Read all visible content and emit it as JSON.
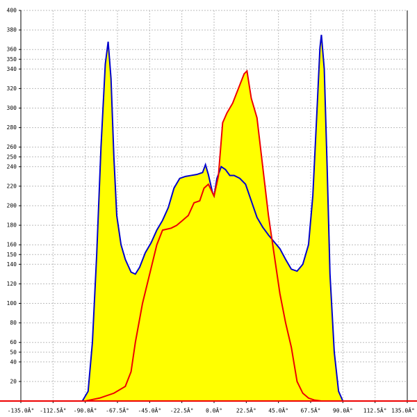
{
  "chart_data": {
    "type": "area",
    "xlim": [
      -135,
      135
    ],
    "ylim": [
      0,
      400
    ],
    "xticks": [
      {
        "value": -135,
        "label": "-135.0Â°"
      },
      {
        "value": -112.5,
        "label": "-112.5Â°"
      },
      {
        "value": -90,
        "label": "-90.0Â°"
      },
      {
        "value": -67.5,
        "label": "-67.5Â°"
      },
      {
        "value": -45,
        "label": "-45.0Â°"
      },
      {
        "value": -22.5,
        "label": "-22.5Â°"
      },
      {
        "value": 0,
        "label": "0.0Â°"
      },
      {
        "value": 22.5,
        "label": "22.5Â°"
      },
      {
        "value": 45,
        "label": "45.0Â°"
      },
      {
        "value": 67.5,
        "label": "67.5Â°"
      },
      {
        "value": 90,
        "label": "90.0Â°"
      },
      {
        "value": 112.5,
        "label": "112.5Â°"
      },
      {
        "value": 135,
        "label": "135.0Â°"
      }
    ],
    "yticks": [
      20,
      40,
      50,
      60,
      80,
      100,
      120,
      140,
      150,
      160,
      180,
      200,
      220,
      240,
      250,
      260,
      280,
      300,
      320,
      340,
      350,
      360,
      380,
      400
    ],
    "grid": true,
    "fill_color": "#ffff00",
    "series": [
      {
        "color": "#0000cc",
        "x": [
          -92,
          -88,
          -85,
          -82,
          -79,
          -76,
          -74,
          -72,
          -70,
          -68,
          -65,
          -62,
          -58,
          -55,
          -52,
          -48,
          -44,
          -40,
          -36,
          -32,
          -28,
          -24,
          -20,
          -16,
          -12,
          -8,
          -6,
          -4,
          -1,
          0,
          2,
          5,
          8,
          11,
          14,
          18,
          22,
          26,
          30,
          34,
          38,
          42,
          46,
          50,
          54,
          58,
          62,
          66,
          69,
          72,
          74,
          75,
          77,
          79,
          81,
          84,
          87,
          90
        ],
        "values": [
          0,
          10,
          60,
          150,
          260,
          345,
          368,
          330,
          250,
          190,
          160,
          145,
          132,
          130,
          137,
          152,
          162,
          175,
          185,
          198,
          218,
          228,
          230,
          231,
          232,
          234,
          242,
          232,
          213,
          210,
          228,
          240,
          237,
          231,
          231,
          228,
          222,
          205,
          188,
          178,
          170,
          163,
          156,
          145,
          135,
          133,
          140,
          160,
          210,
          300,
          362,
          375,
          340,
          240,
          130,
          50,
          10,
          0
        ]
      },
      {
        "color": "#ee0000",
        "x": [
          -90,
          -80,
          -70,
          -62,
          -58,
          -55,
          -50,
          -45,
          -40,
          -36,
          -30,
          -26,
          -22,
          -18,
          -14,
          -10,
          -7,
          -4,
          0,
          3,
          6,
          9,
          13,
          17,
          21,
          23,
          26,
          30,
          34,
          38,
          42,
          46,
          50,
          54,
          58,
          62,
          66,
          70,
          75
        ],
        "values": [
          0,
          3,
          8,
          15,
          30,
          60,
          100,
          130,
          160,
          175,
          177,
          180,
          185,
          190,
          203,
          205,
          218,
          222,
          210,
          230,
          285,
          295,
          305,
          320,
          335,
          338,
          310,
          290,
          240,
          190,
          150,
          110,
          80,
          55,
          20,
          8,
          3,
          1,
          0
        ]
      }
    ]
  }
}
